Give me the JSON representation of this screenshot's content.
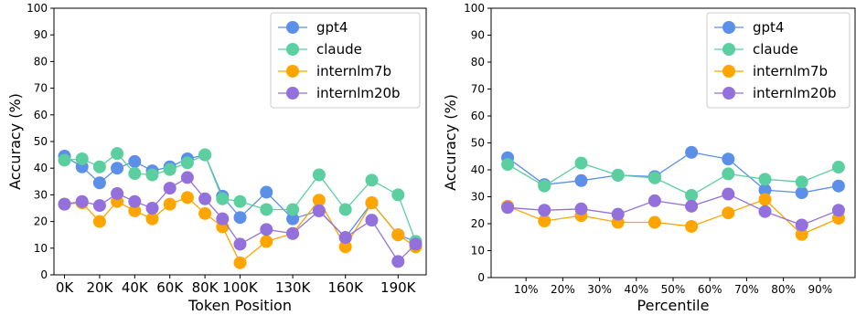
{
  "chart_data": [
    {
      "type": "line",
      "xlabel": "Token Position",
      "ylabel": "Accuracy (%)",
      "ylim": [
        0,
        100
      ],
      "yticks": [
        0,
        10,
        20,
        30,
        40,
        50,
        60,
        70,
        80,
        90,
        100
      ],
      "xticks": [
        {
          "label": "0K",
          "value": 0
        },
        {
          "label": "20K",
          "value": 20
        },
        {
          "label": "40K",
          "value": 40
        },
        {
          "label": "60K",
          "value": 60
        },
        {
          "label": "80K",
          "value": 80
        },
        {
          "label": "100K",
          "value": 100
        },
        {
          "label": "130K",
          "value": 130
        },
        {
          "label": "160K",
          "value": 160
        },
        {
          "label": "190K",
          "value": 190
        }
      ],
      "xlim": [
        -6,
        206
      ],
      "x": [
        0,
        10,
        20,
        30,
        40,
        50,
        60,
        70,
        80,
        90,
        100,
        115,
        130,
        145,
        160,
        175,
        190,
        200
      ],
      "legend_position": "upper-right",
      "series": [
        {
          "name": "gpt4",
          "color": "#5b8fe8",
          "values": [
            44.5,
            40.5,
            34.5,
            40,
            42.5,
            39,
            40.5,
            43.5,
            45,
            29.5,
            21.5,
            31,
            21,
            24,
            14,
            27,
            15,
            12.5
          ]
        },
        {
          "name": "claude",
          "color": "#5ccfa0",
          "values": [
            43,
            43.5,
            40.5,
            45.5,
            38,
            37.5,
            39.5,
            42,
            45,
            28.5,
            27.5,
            24.5,
            24.5,
            37.5,
            24.5,
            35.5,
            30,
            12.5
          ]
        },
        {
          "name": "internlm7b",
          "color": "#ffa500",
          "values": [
            26.5,
            27,
            20,
            27.5,
            24,
            21,
            26.5,
            29,
            23,
            18,
            4.5,
            12.5,
            15.5,
            28,
            10.5,
            27,
            15,
            10.5
          ]
        },
        {
          "name": "internlm20b",
          "color": "#9370db",
          "values": [
            26.5,
            27.5,
            26,
            30.5,
            27.5,
            25,
            32.5,
            36.5,
            28.5,
            21,
            11.5,
            17,
            15.5,
            24,
            14,
            20.5,
            5,
            11.5
          ]
        }
      ]
    },
    {
      "type": "line",
      "xlabel": "Percentile",
      "ylabel": "Accuracy (%)",
      "ylim": [
        0,
        100
      ],
      "yticks": [
        0,
        10,
        20,
        30,
        40,
        50,
        60,
        70,
        80,
        90,
        100
      ],
      "xticks": [
        {
          "label": "10%",
          "value": 10
        },
        {
          "label": "20%",
          "value": 20
        },
        {
          "label": "30%",
          "value": 30
        },
        {
          "label": "40%",
          "value": 40
        },
        {
          "label": "50%",
          "value": 50
        },
        {
          "label": "60%",
          "value": 60
        },
        {
          "label": "70%",
          "value": 70
        },
        {
          "label": "80%",
          "value": 80
        },
        {
          "label": "90%",
          "value": 90
        }
      ],
      "xlim": [
        0.5,
        99.5
      ],
      "x": [
        5,
        15,
        25,
        35,
        45,
        55,
        65,
        75,
        85,
        95
      ],
      "legend_position": "upper-right",
      "series": [
        {
          "name": "gpt4",
          "color": "#5b8fe8",
          "values": [
            44.5,
            34.5,
            36,
            38,
            37.5,
            46.5,
            44,
            32.5,
            31.5,
            34
          ]
        },
        {
          "name": "claude",
          "color": "#5ccfa0",
          "values": [
            42,
            34,
            42.5,
            38,
            37,
            30.5,
            38.5,
            36.5,
            35.5,
            41
          ]
        },
        {
          "name": "internlm7b",
          "color": "#ffa500",
          "values": [
            26.5,
            21,
            23,
            20.5,
            20.5,
            19,
            24,
            29,
            16,
            22
          ]
        },
        {
          "name": "internlm20b",
          "color": "#9370db",
          "values": [
            26,
            25,
            25.5,
            23.5,
            28.5,
            26.5,
            31,
            24.5,
            19.5,
            25
          ]
        }
      ]
    }
  ]
}
